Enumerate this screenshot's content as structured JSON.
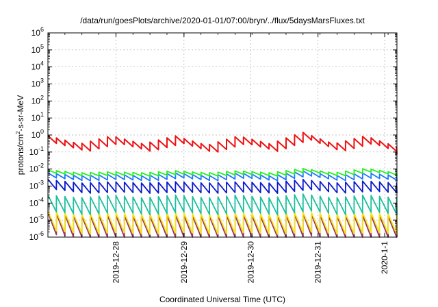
{
  "chart_data": {
    "type": "line",
    "title": "/data/run/goesPlots/archive/2020-01-01/07:00/bryn/../flux/5daysMarsFluxes.txt",
    "xlabel": "Coordinated Universal Time (UTC)",
    "ylabel": {
      "base": "protons/cm",
      "sup": "2",
      "rest": "-s-sr-MeV"
    },
    "y_scale": "log",
    "ylim": [
      1e-06,
      1000000.0
    ],
    "yticks": [
      {
        "value": 1e-06,
        "base": "10",
        "exp": "-6"
      },
      {
        "value": 1e-05,
        "base": "10",
        "exp": "-5"
      },
      {
        "value": 0.0001,
        "base": "10",
        "exp": "-4"
      },
      {
        "value": 0.001,
        "base": "10",
        "exp": "-3"
      },
      {
        "value": 0.01,
        "base": "10",
        "exp": "-2"
      },
      {
        "value": 0.1,
        "base": "10",
        "exp": "-1"
      },
      {
        "value": 1,
        "base": "10",
        "exp": "0"
      },
      {
        "value": 10,
        "base": "10",
        "exp": "1"
      },
      {
        "value": 100,
        "base": "10",
        "exp": "2"
      },
      {
        "value": 1000,
        "base": "10",
        "exp": "3"
      },
      {
        "value": 10000,
        "base": "10",
        "exp": "4"
      },
      {
        "value": 100000,
        "base": "10",
        "exp": "5"
      },
      {
        "value": 1000000,
        "base": "10",
        "exp": "6"
      }
    ],
    "x_unit": "days",
    "xlim": [
      0,
      5.13
    ],
    "xticks": [
      {
        "value": 1,
        "label": "2019-12-28"
      },
      {
        "value": 2,
        "label": "2019-12-29"
      },
      {
        "value": 2.98,
        "label": "2019-12-30"
      },
      {
        "value": 3.97,
        "label": "2019-12-31"
      },
      {
        "value": 4.95,
        "label": "2020-1-1"
      }
    ],
    "grid": true,
    "legend": "none",
    "sawtooth_period": 0.125,
    "series": [
      {
        "color": "#ee1111",
        "top": [
          0.9,
          0.3,
          0.9,
          0.3,
          0.9,
          0.25,
          0.9,
          0.3,
          1.5,
          0.3,
          0.9,
          0.2
        ],
        "ratio": 2.8,
        "smooth": true
      },
      {
        "color": "#22ee22",
        "top": [
          0.009,
          0.006,
          0.007,
          0.006,
          0.008,
          0.006,
          0.008,
          0.006,
          0.011,
          0.006,
          0.011,
          0.006
        ],
        "ratio": 1.6
      },
      {
        "color": "#1a78ff",
        "top": [
          0.006,
          0.004,
          0.005,
          0.004,
          0.006,
          0.004,
          0.006,
          0.004,
          0.008,
          0.004,
          0.006,
          0.004
        ],
        "ratio": 2.0
      },
      {
        "color": "#0a18cc",
        "top": [
          0.0025,
          0.0015,
          0.0018,
          0.0015,
          0.0018,
          0.0015,
          0.0018,
          0.0015,
          0.0025,
          0.0015,
          0.002,
          0.0015
        ],
        "ratio": 4.0
      },
      {
        "color": "#1abf9c",
        "top": [
          0.0003,
          0.0002,
          0.0003,
          0.0002,
          0.0003,
          0.0002,
          0.0003,
          0.0002,
          0.00035,
          0.0002,
          0.0003,
          0.0002
        ],
        "ratio": 10.0
      },
      {
        "color": "#f5e414",
        "top": [
          3.5e-05,
          2.2e-05,
          2.8e-05,
          2.2e-05,
          2.8e-05,
          2.2e-05,
          2.8e-05,
          2.2e-05,
          3e-05,
          2.2e-05,
          2.8e-05,
          2.2e-05
        ],
        "ratio": 15.0
      },
      {
        "color": "#993366",
        "top": [
          2.8e-05,
          1.6e-05,
          2e-05,
          1.6e-05,
          2e-05,
          1.6e-05,
          2e-05,
          1.6e-05,
          2.4e-05,
          1.6e-05,
          2e-05,
          1.6e-05
        ],
        "ratio": 20.0
      }
    ]
  }
}
